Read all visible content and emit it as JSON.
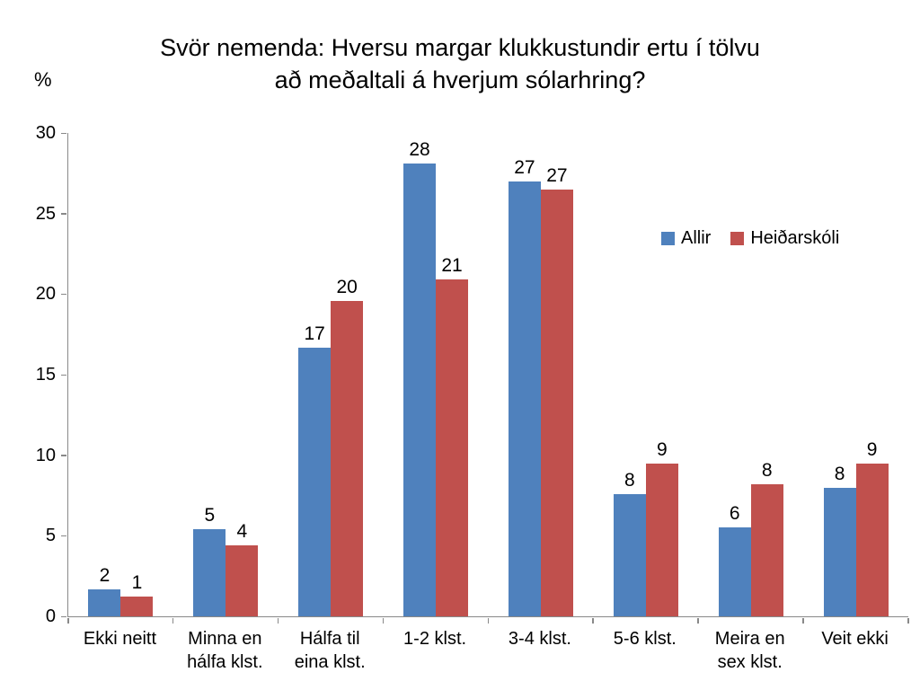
{
  "chart_data": {
    "type": "bar",
    "title": "Svör nemenda: Hversu margar klukkustundir ertu í tölvu að meðaltali á hverjum sólarhring?",
    "title_lines": [
      "Svör nemenda: Hversu margar klukkustundir ertu í tölvu",
      "að meðaltali á hverjum sólarhring?"
    ],
    "ylabel": "%",
    "xlabel": "",
    "ylim": [
      0,
      30
    ],
    "y_ticks": [
      0,
      5,
      10,
      15,
      20,
      25,
      30
    ],
    "grid": false,
    "legend_position": "inside-right",
    "categories": [
      "Ekki neitt",
      "Minna en\nhálfa klst.",
      "Hálfa til\neina klst.",
      "1-2 klst.",
      "3-4 klst.",
      "5-6 klst.",
      "Meira en\nsex klst.",
      "Veit ekki"
    ],
    "series": [
      {
        "name": "Allir",
        "color": "#4f81bd",
        "values": [
          1.7,
          5.4,
          16.7,
          28.1,
          27.0,
          7.6,
          5.5,
          8.0
        ],
        "labels": [
          "2",
          "5",
          "17",
          "28",
          "27",
          "8",
          "6",
          "8"
        ]
      },
      {
        "name": "Heiðarskóli",
        "color": "#c0504d",
        "values": [
          1.2,
          4.4,
          19.6,
          20.9,
          26.5,
          9.5,
          8.2,
          9.5
        ],
        "labels": [
          "1",
          "4",
          "20",
          "21",
          "27",
          "9",
          "8",
          "9"
        ]
      }
    ]
  }
}
